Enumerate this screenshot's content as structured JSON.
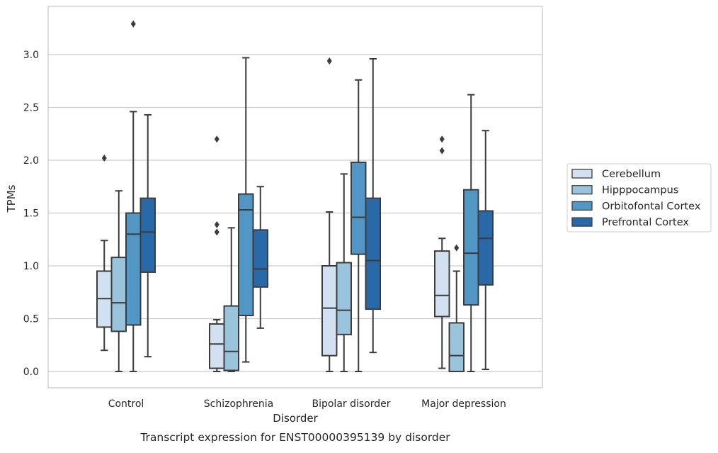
{
  "chart_data": {
    "type": "box",
    "title": "",
    "caption": "Transcript expression for ENST00000395139 by disorder",
    "xlabel": "Disorder",
    "ylabel": "TPMs",
    "ylim": [
      -0.16,
      3.45
    ],
    "yticks": [
      0.0,
      0.5,
      1.0,
      1.5,
      2.0,
      2.5,
      3.0
    ],
    "ytick_labels": [
      "0.0",
      "0.5",
      "1.0",
      "1.5",
      "2.0",
      "2.5",
      "3.0"
    ],
    "grid": "horizontal",
    "legend_position": "right",
    "categories": [
      "Control",
      "Schizophrenia",
      "Bipolar disorder",
      "Major depression"
    ],
    "series": [
      {
        "name": "Cerebellum",
        "color": "#d2e1f1",
        "boxes": [
          {
            "whislo": 0.2,
            "q1": 0.42,
            "med": 0.69,
            "q3": 0.95,
            "whishi": 1.24,
            "fliers": [
              2.02
            ]
          },
          {
            "whislo": 0.0,
            "q1": 0.03,
            "med": 0.26,
            "q3": 0.45,
            "whishi": 0.49,
            "fliers": [
              2.2,
              1.39,
              1.32
            ]
          },
          {
            "whislo": 0.0,
            "q1": 0.15,
            "med": 0.6,
            "q3": 1.0,
            "whishi": 1.51,
            "fliers": [
              2.94
            ]
          },
          {
            "whislo": 0.03,
            "q1": 0.52,
            "med": 0.72,
            "q3": 1.14,
            "whishi": 1.26,
            "fliers": [
              2.2,
              2.09
            ]
          }
        ]
      },
      {
        "name": "Hipppocampus",
        "color": "#9ac3dc",
        "boxes": [
          {
            "whislo": 0.0,
            "q1": 0.38,
            "med": 0.65,
            "q3": 1.08,
            "whishi": 1.71,
            "fliers": []
          },
          {
            "whislo": 0.0,
            "q1": 0.01,
            "med": 0.19,
            "q3": 0.62,
            "whishi": 1.36,
            "fliers": []
          },
          {
            "whislo": 0.0,
            "q1": 0.35,
            "med": 0.58,
            "q3": 1.03,
            "whishi": 1.87,
            "fliers": []
          },
          {
            "whislo": 0.0,
            "q1": 0.0,
            "med": 0.15,
            "q3": 0.46,
            "whishi": 0.95,
            "fliers": [
              1.17
            ]
          }
        ]
      },
      {
        "name": "Orbitofontal Cortex",
        "color": "#5296c6",
        "boxes": [
          {
            "whislo": 0.0,
            "q1": 0.44,
            "med": 1.3,
            "q3": 1.5,
            "whishi": 2.46,
            "fliers": [
              3.29
            ]
          },
          {
            "whislo": 0.09,
            "q1": 0.53,
            "med": 1.53,
            "q3": 1.68,
            "whishi": 2.97,
            "fliers": []
          },
          {
            "whislo": 0.0,
            "q1": 1.11,
            "med": 1.46,
            "q3": 1.98,
            "whishi": 2.76,
            "fliers": []
          },
          {
            "whislo": 0.0,
            "q1": 0.63,
            "med": 1.12,
            "q3": 1.72,
            "whishi": 2.62,
            "fliers": []
          }
        ]
      },
      {
        "name": "Prefrontal Cortex",
        "color": "#2a69a8",
        "boxes": [
          {
            "whislo": 0.14,
            "q1": 0.94,
            "med": 1.32,
            "q3": 1.64,
            "whishi": 2.43,
            "fliers": []
          },
          {
            "whislo": 0.41,
            "q1": 0.8,
            "med": 0.97,
            "q3": 1.34,
            "whishi": 1.75,
            "fliers": []
          },
          {
            "whislo": 0.18,
            "q1": 0.59,
            "med": 1.05,
            "q3": 1.64,
            "whishi": 2.96,
            "fliers": []
          },
          {
            "whislo": 0.02,
            "q1": 0.82,
            "med": 1.26,
            "q3": 1.52,
            "whishi": 2.28,
            "fliers": []
          }
        ]
      }
    ]
  }
}
